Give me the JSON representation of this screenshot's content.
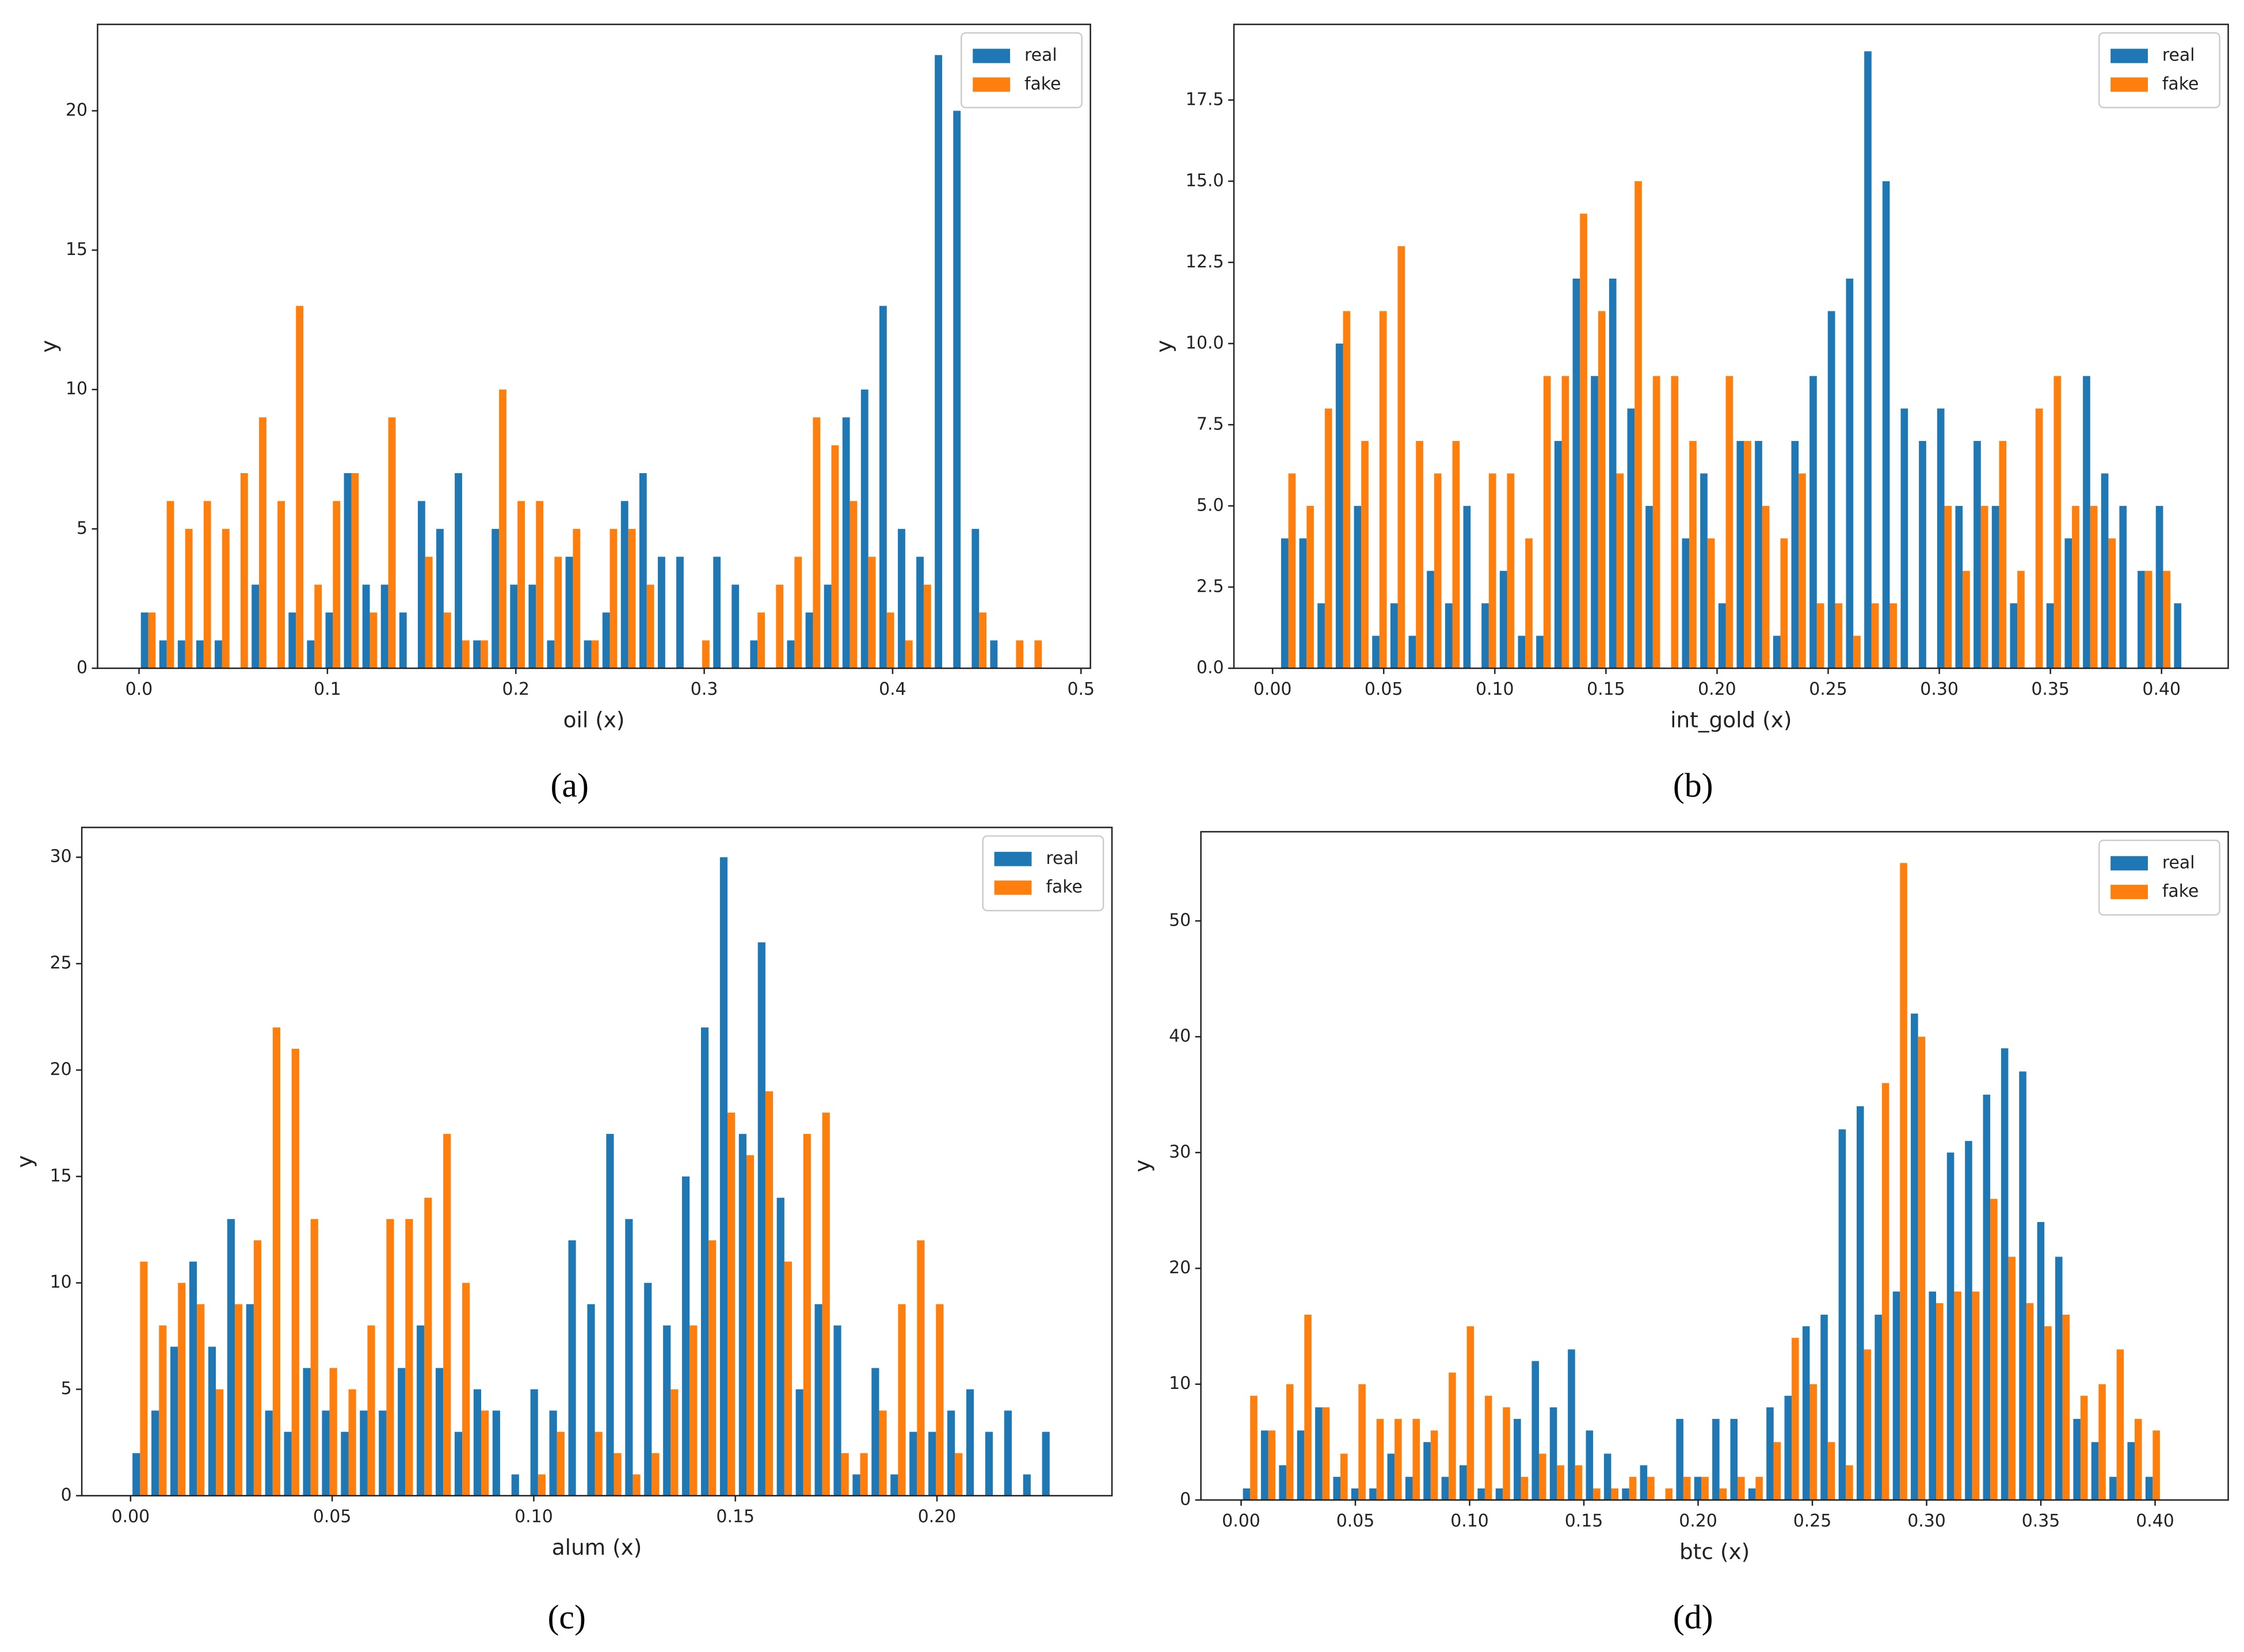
{
  "chart_data": [
    {
      "type": "histogram",
      "caption": "(a)",
      "x_label": "oil (x)",
      "y_label": "y",
      "legend": "upper right",
      "bins": [
        0,
        0.0098,
        0.0196,
        0.0294,
        0.0392,
        0.049,
        0.0588,
        0.0686,
        0.0784,
        0.0882,
        0.098,
        0.1078,
        0.1176,
        0.1274,
        0.1372,
        0.147,
        0.1568,
        0.1666,
        0.1764,
        0.1862,
        0.196,
        0.2058,
        0.2156,
        0.2254,
        0.2352,
        0.245,
        0.2548,
        0.2646,
        0.2744,
        0.2842,
        0.294,
        0.3038,
        0.3136,
        0.3234,
        0.3332,
        0.343,
        0.3528,
        0.3626,
        0.3724,
        0.3822,
        0.392,
        0.4018,
        0.4116,
        0.4214,
        0.4312,
        0.441,
        0.4508,
        0.4606,
        0.4704,
        0.4802,
        0.49
      ],
      "series": [
        {
          "name": "real",
          "color": "#1f77b4",
          "values": [
            2,
            1,
            1,
            1,
            1,
            0,
            3,
            0,
            2,
            1,
            2,
            7,
            3,
            3,
            2,
            6,
            5,
            7,
            1,
            5,
            3,
            3,
            1,
            4,
            1,
            2,
            6,
            7,
            4,
            4,
            0,
            4,
            3,
            1,
            0,
            1,
            2,
            3,
            9,
            10,
            13,
            5,
            4,
            22,
            20,
            5,
            1,
            0,
            0,
            0
          ]
        },
        {
          "name": "fake",
          "color": "#ff7f0e",
          "values": [
            2,
            6,
            5,
            6,
            5,
            7,
            9,
            6,
            13,
            3,
            6,
            7,
            2,
            9,
            0,
            4,
            2,
            1,
            1,
            10,
            6,
            6,
            4,
            5,
            1,
            5,
            5,
            3,
            0,
            0,
            1,
            0,
            0,
            2,
            3,
            4,
            9,
            8,
            6,
            4,
            2,
            1,
            3,
            0,
            0,
            2,
            0,
            1,
            1,
            0
          ]
        }
      ],
      "xlim": [
        -0.022,
        0.505
      ],
      "ylim": [
        0,
        23.1
      ],
      "xticks": [
        {
          "value": 0,
          "label": "0.0"
        },
        0.1,
        0.2,
        0.3,
        0.4,
        0.5
      ],
      "yticks": [
        0,
        5,
        10,
        15,
        20
      ]
    },
    {
      "type": "histogram",
      "caption": "(b)",
      "x_label": "int_gold (x)",
      "y_label": "y",
      "legend": "upper right",
      "bins": [
        0.003,
        0.0112,
        0.0194,
        0.0276,
        0.0358,
        0.044,
        0.0522,
        0.0604,
        0.0686,
        0.0768,
        0.085,
        0.0932,
        0.1014,
        0.1096,
        0.1178,
        0.126,
        0.1342,
        0.1424,
        0.1506,
        0.1588,
        0.167,
        0.1752,
        0.1834,
        0.1916,
        0.1998,
        0.208,
        0.2162,
        0.2244,
        0.2326,
        0.2408,
        0.249,
        0.2572,
        0.2654,
        0.2736,
        0.2818,
        0.29,
        0.2982,
        0.3064,
        0.3146,
        0.3228,
        0.331,
        0.3392,
        0.3474,
        0.3556,
        0.3638,
        0.372,
        0.3802,
        0.3884,
        0.3966,
        0.4048,
        0.413
      ],
      "series": [
        {
          "name": "real",
          "color": "#1f77b4",
          "values": [
            4,
            4,
            2,
            10,
            5,
            1,
            2,
            1,
            3,
            2,
            5,
            2,
            3,
            1,
            1,
            7,
            12,
            9,
            12,
            8,
            5,
            0,
            4,
            6,
            2,
            7,
            7,
            1,
            7,
            9,
            11,
            12,
            19,
            15,
            8,
            7,
            8,
            5,
            7,
            5,
            2,
            0,
            2,
            4,
            9,
            6,
            5,
            3,
            5,
            2
          ]
        },
        {
          "name": "fake",
          "color": "#ff7f0e",
          "values": [
            6,
            5,
            8,
            11,
            7,
            11,
            13,
            7,
            6,
            7,
            0,
            6,
            6,
            4,
            9,
            9,
            14,
            11,
            6,
            15,
            9,
            9,
            7,
            4,
            9,
            7,
            5,
            4,
            6,
            2,
            2,
            1,
            2,
            2,
            0,
            0,
            5,
            3,
            5,
            7,
            3,
            8,
            9,
            5,
            5,
            4,
            0,
            3,
            3,
            0
          ]
        }
      ],
      "xlim": [
        -0.0174,
        0.43
      ],
      "ylim": [
        0,
        19.83
      ],
      "xticks": [
        {
          "value": 0,
          "label": "0.00"
        },
        0.05,
        {
          "value": 0.1,
          "label": "0.10"
        },
        0.15,
        {
          "value": 0.2,
          "label": "0.20"
        },
        0.25,
        {
          "value": 0.3,
          "label": "0.30"
        },
        0.35,
        {
          "value": 0.4,
          "label": "0.40"
        }
      ],
      "yticks": [
        {
          "value": 0,
          "label": "0.0"
        },
        2.5,
        {
          "value": 5,
          "label": "5.0"
        },
        7.5,
        {
          "value": 10,
          "label": "10.0"
        },
        12.5,
        {
          "value": 15,
          "label": "15.0"
        },
        17.5
      ]
    },
    {
      "type": "histogram",
      "caption": "(c)",
      "x_label": "alum (x)",
      "y_label": "y",
      "legend": "upper right",
      "bins": [
        0,
        0.0047,
        0.0094,
        0.0141,
        0.0188,
        0.0235,
        0.0282,
        0.0329,
        0.0376,
        0.0423,
        0.047,
        0.0517,
        0.0564,
        0.0611,
        0.0658,
        0.0705,
        0.0752,
        0.0799,
        0.0846,
        0.0893,
        0.094,
        0.0987,
        0.1034,
        0.1081,
        0.1128,
        0.1175,
        0.1222,
        0.1269,
        0.1316,
        0.1363,
        0.141,
        0.1457,
        0.1504,
        0.1551,
        0.1598,
        0.1645,
        0.1692,
        0.1739,
        0.1786,
        0.1833,
        0.188,
        0.1927,
        0.1974,
        0.2021,
        0.2068,
        0.2115,
        0.2162,
        0.2209,
        0.2256,
        0.2303
      ],
      "series": [
        {
          "name": "real",
          "color": "#1f77b4",
          "values": [
            2,
            4,
            7,
            11,
            7,
            13,
            9,
            4,
            3,
            6,
            4,
            3,
            4,
            4,
            6,
            8,
            6,
            3,
            5,
            4,
            1,
            5,
            4,
            12,
            9,
            17,
            13,
            10,
            8,
            15,
            22,
            30,
            17,
            26,
            14,
            5,
            9,
            8,
            1,
            6,
            1,
            3,
            3,
            4,
            5,
            3,
            4,
            1,
            3
          ]
        },
        {
          "name": "fake",
          "color": "#ff7f0e",
          "values": [
            11,
            8,
            10,
            9,
            5,
            9,
            12,
            22,
            21,
            13,
            6,
            5,
            8,
            13,
            13,
            14,
            17,
            10,
            4,
            0,
            0,
            1,
            3,
            0,
            3,
            2,
            1,
            2,
            5,
            8,
            12,
            18,
            16,
            19,
            11,
            17,
            18,
            2,
            2,
            4,
            9,
            12,
            9,
            2,
            0,
            0,
            0,
            0,
            0
          ]
        }
      ],
      "xlim": [
        -0.0121,
        0.2434
      ],
      "ylim": [
        0,
        31.4
      ],
      "xticks": [
        {
          "value": 0,
          "label": "0.00"
        },
        0.05,
        {
          "value": 0.1,
          "label": "0.10"
        },
        0.15,
        {
          "value": 0.2,
          "label": "0.20"
        }
      ],
      "yticks": [
        0,
        5,
        10,
        15,
        20,
        25,
        30
      ]
    },
    {
      "type": "histogram",
      "caption": "(d)",
      "x_label": "btc (x)",
      "y_label": "y",
      "legend": "upper right",
      "bins": [
        0,
        0.0079,
        0.0158,
        0.0237,
        0.0316,
        0.0395,
        0.0474,
        0.0553,
        0.0632,
        0.0711,
        0.079,
        0.0869,
        0.0948,
        0.1027,
        0.1106,
        0.1185,
        0.1264,
        0.1343,
        0.1422,
        0.1501,
        0.158,
        0.1659,
        0.1738,
        0.1817,
        0.1896,
        0.1975,
        0.2054,
        0.2133,
        0.2212,
        0.2291,
        0.237,
        0.2449,
        0.2528,
        0.2607,
        0.2686,
        0.2765,
        0.2844,
        0.2923,
        0.3002,
        0.3081,
        0.316,
        0.3239,
        0.3318,
        0.3397,
        0.3476,
        0.3555,
        0.3634,
        0.3713,
        0.3792,
        0.3871,
        0.395,
        0.4029,
        0.4108
      ],
      "series": [
        {
          "name": "real",
          "color": "#1f77b4",
          "values": [
            1,
            6,
            3,
            6,
            8,
            2,
            1,
            1,
            4,
            2,
            5,
            2,
            3,
            1,
            1,
            7,
            12,
            8,
            13,
            6,
            4,
            1,
            3,
            0,
            7,
            2,
            7,
            7,
            1,
            8,
            9,
            15,
            16,
            32,
            34,
            16,
            18,
            42,
            18,
            30,
            31,
            35,
            39,
            37,
            24,
            21,
            7,
            5,
            2,
            5,
            2,
            0
          ]
        },
        {
          "name": "fake",
          "color": "#ff7f0e",
          "values": [
            9,
            6,
            10,
            16,
            8,
            4,
            10,
            7,
            7,
            7,
            6,
            11,
            15,
            9,
            8,
            2,
            4,
            3,
            3,
            1,
            1,
            2,
            2,
            1,
            2,
            2,
            1,
            2,
            2,
            5,
            14,
            10,
            5,
            3,
            13,
            36,
            55,
            40,
            17,
            18,
            18,
            26,
            21,
            17,
            15,
            16,
            9,
            10,
            13,
            7,
            6,
            0
          ]
        }
      ],
      "xlim": [
        -0.0176,
        0.432
      ],
      "ylim": [
        0,
        57.7
      ],
      "xticks": [
        {
          "value": 0,
          "label": "0.00"
        },
        0.05,
        {
          "value": 0.1,
          "label": "0.10"
        },
        0.15,
        {
          "value": 0.2,
          "label": "0.20"
        },
        0.25,
        {
          "value": 0.3,
          "label": "0.30"
        },
        0.35,
        {
          "value": 0.4,
          "label": "0.40"
        }
      ],
      "yticks": [
        0,
        10,
        20,
        30,
        40,
        50
      ]
    }
  ]
}
